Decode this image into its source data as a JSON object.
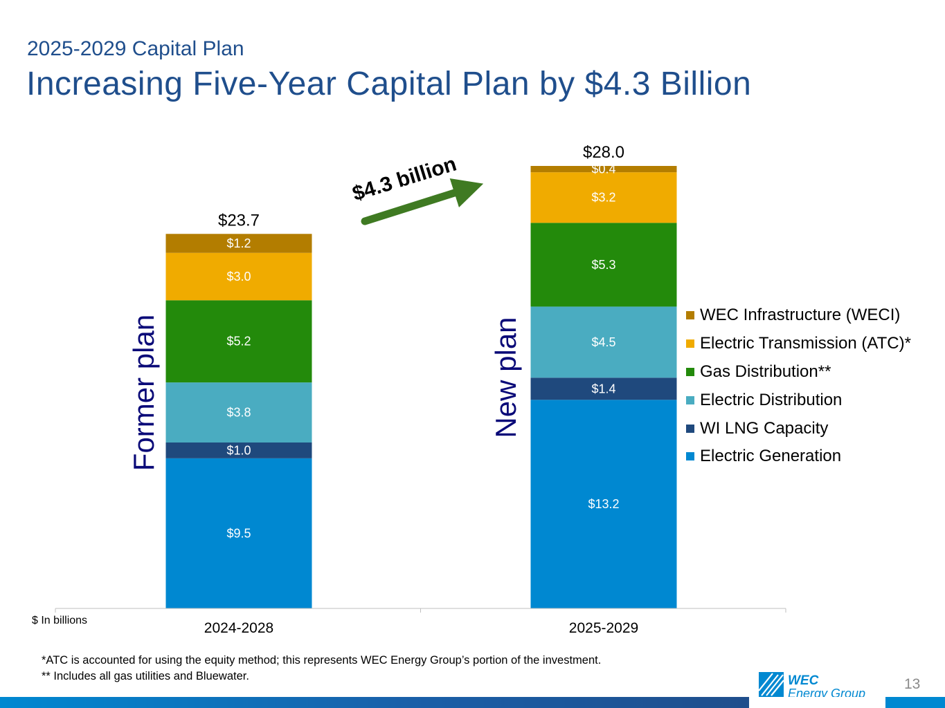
{
  "header": {
    "subtitle": "2025-2029 Capital Plan",
    "title": "Increasing Five-Year Capital Plan by $4.3 Billion"
  },
  "chart_data": {
    "type": "bar",
    "stacked": true,
    "units_label": "$ In billions",
    "categories": [
      "2024-2028",
      "2025-2029"
    ],
    "category_annotations": [
      "Former plan",
      "New plan"
    ],
    "totals": [
      23.7,
      28.0
    ],
    "total_labels": [
      "$23.7",
      "$28.0"
    ],
    "series": [
      {
        "name": "Electric Generation",
        "color": "#0088d1",
        "values": [
          9.5,
          13.2
        ],
        "labels": [
          "$9.5",
          "$13.2"
        ]
      },
      {
        "name": "WI LNG Capacity",
        "color": "#1f497d",
        "values": [
          1.0,
          1.4
        ],
        "labels": [
          "$1.0",
          "$1.4"
        ]
      },
      {
        "name": "Electric Distribution",
        "color": "#4aacc1",
        "values": [
          3.8,
          4.5
        ],
        "labels": [
          "$3.8",
          "$4.5"
        ]
      },
      {
        "name": "Gas Distribution**",
        "color": "#238a0b",
        "values": [
          5.2,
          5.3
        ],
        "labels": [
          "$5.2",
          "$5.3"
        ]
      },
      {
        "name": "Electric Transmission (ATC)*",
        "color": "#f0ab00",
        "values": [
          3.0,
          3.2
        ],
        "labels": [
          "$3.0",
          "$3.2"
        ]
      },
      {
        "name": "WEC Infrastructure (WECI)",
        "color": "#b37d00",
        "values": [
          1.2,
          0.4
        ],
        "labels": [
          "$1.2",
          "$0.4"
        ]
      }
    ],
    "legend_order": [
      5,
      4,
      3,
      2,
      1,
      0
    ],
    "legend_position": "right",
    "ylim": [
      0,
      28.0
    ],
    "grid": false,
    "annotation": {
      "text": "$4.3 billion",
      "color": "#3f7a22"
    }
  },
  "footnotes": [
    "*ATC is accounted for using the equity method; this represents WEC Energy Group’s portion of the investment.",
    "** Includes all gas utilities and Bluewater."
  ],
  "branding": {
    "logo_line1": "WEC",
    "logo_line2": "Energy Group",
    "logo_color": "#0088d1"
  },
  "page_number": "13"
}
